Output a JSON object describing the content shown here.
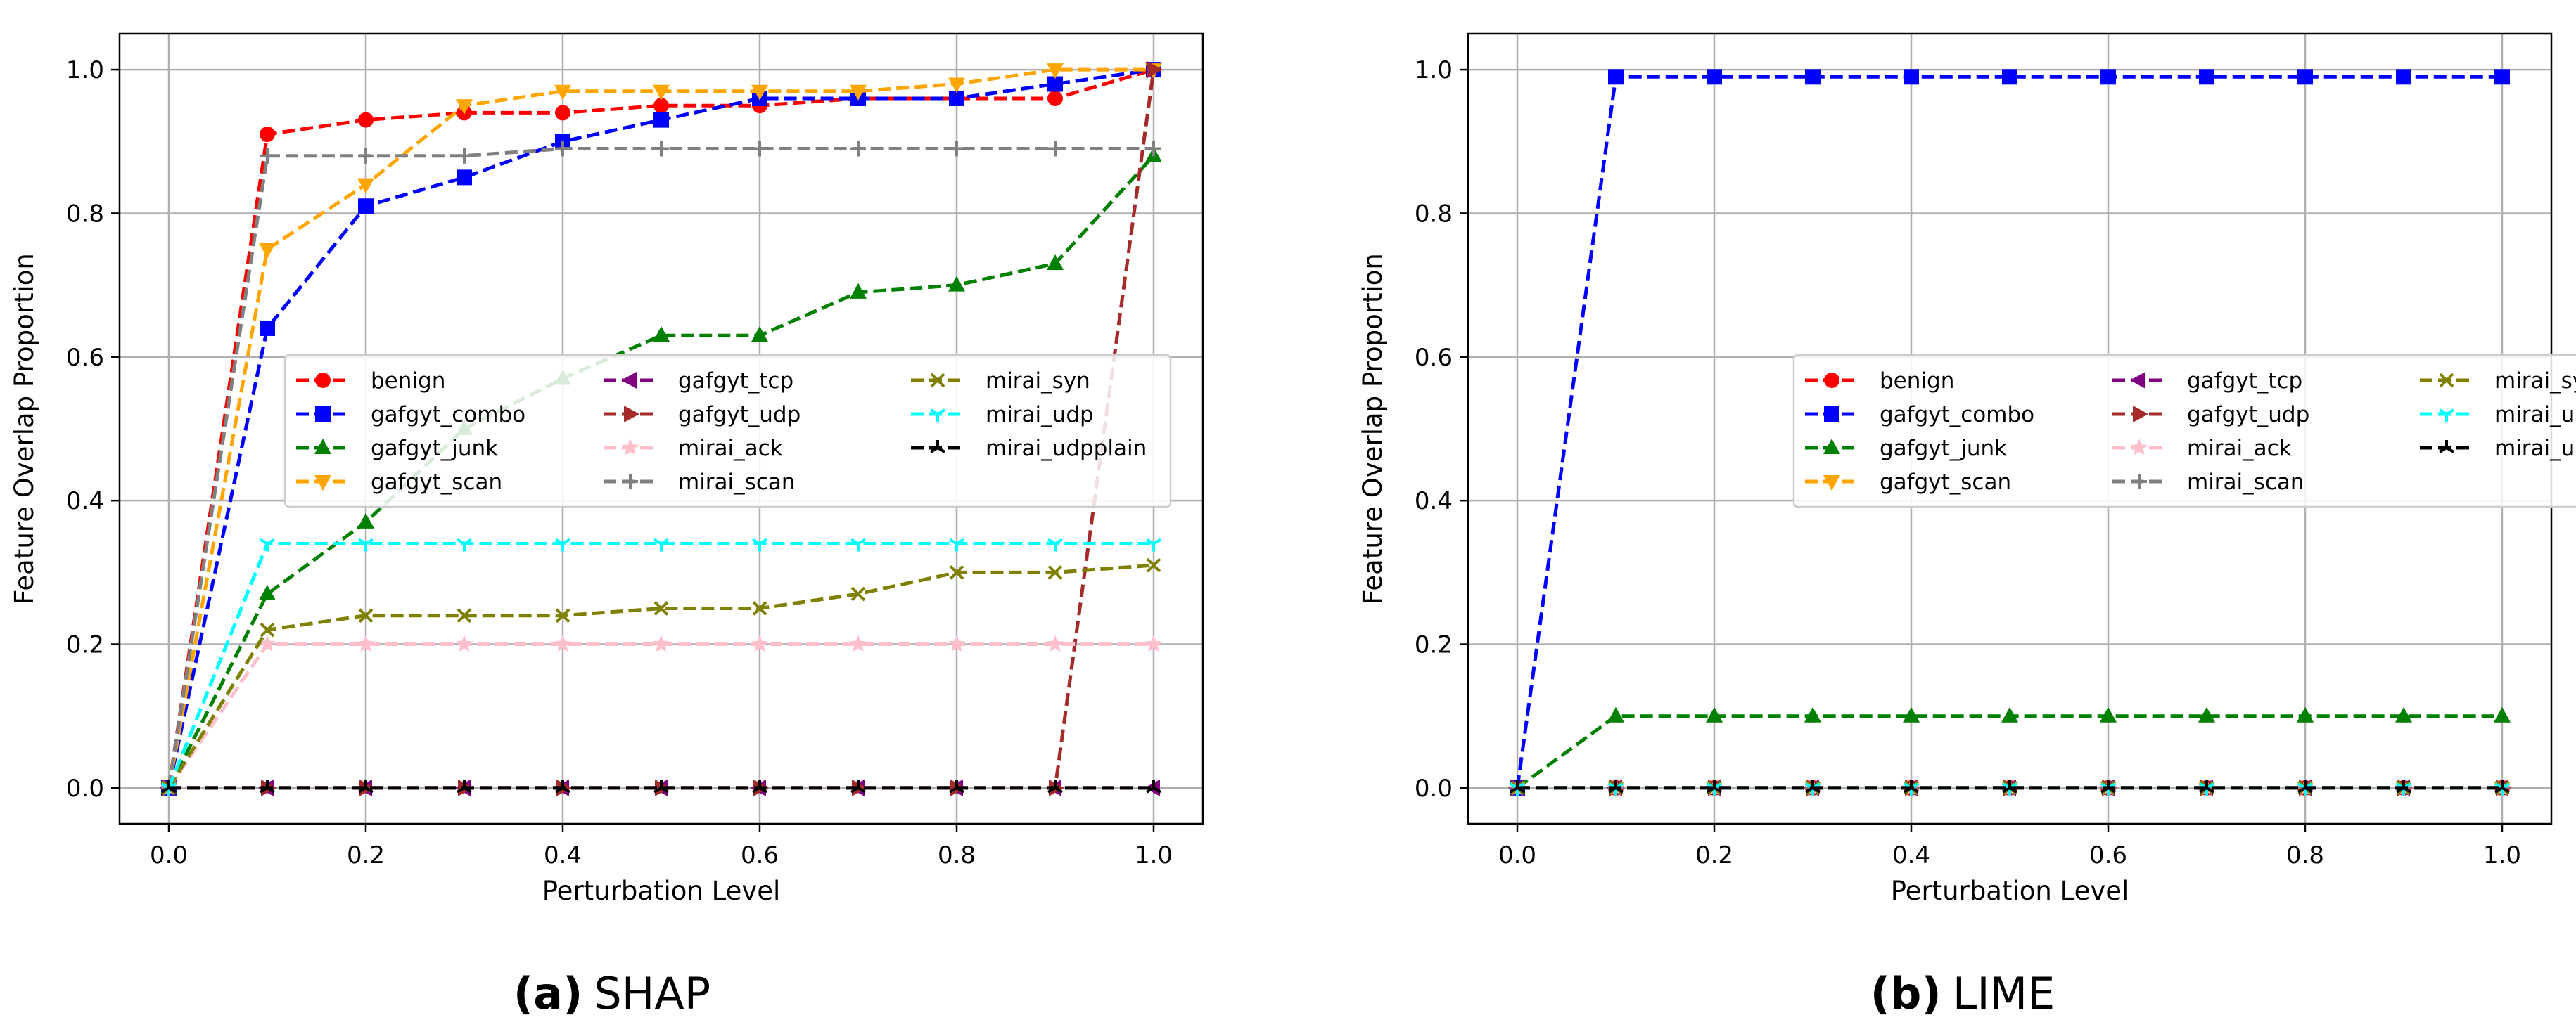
{
  "chart_data": [
    {
      "type": "line",
      "xlabel": "Perturbation Level",
      "ylabel": "Feature Overlap Proportion",
      "caption_label": "(a)",
      "caption_text": "SHAP",
      "xlim": [
        -0.05,
        1.05
      ],
      "ylim": [
        -0.05,
        1.05
      ],
      "xticks": [
        "0.0",
        "0.2",
        "0.4",
        "0.6",
        "0.8",
        "1.0"
      ],
      "yticks": [
        "0.0",
        "0.2",
        "0.4",
        "0.6",
        "0.8",
        "1.0"
      ],
      "grid": true,
      "legend_placement": "center",
      "x": [
        0.0,
        0.1,
        0.2,
        0.3,
        0.4,
        0.5,
        0.6,
        0.7,
        0.8,
        0.9,
        1.0
      ],
      "series": [
        {
          "name": "benign",
          "color": "#ff0000",
          "marker": "circle",
          "values": [
            0.0,
            0.91,
            0.93,
            0.94,
            0.94,
            0.95,
            0.95,
            0.96,
            0.96,
            0.96,
            1.0
          ]
        },
        {
          "name": "gafgyt_combo",
          "color": "#0000ff",
          "marker": "square",
          "values": [
            0.0,
            0.64,
            0.81,
            0.85,
            0.9,
            0.93,
            0.96,
            0.96,
            0.96,
            0.98,
            1.0
          ]
        },
        {
          "name": "gafgyt_junk",
          "color": "#008000",
          "marker": "triangle-up",
          "values": [
            0.0,
            0.27,
            0.37,
            0.5,
            0.57,
            0.63,
            0.63,
            0.69,
            0.7,
            0.73,
            0.88
          ]
        },
        {
          "name": "gafgyt_scan",
          "color": "#ffa500",
          "marker": "triangle-down",
          "values": [
            0.0,
            0.75,
            0.84,
            0.95,
            0.97,
            0.97,
            0.97,
            0.97,
            0.98,
            1.0,
            1.0
          ]
        },
        {
          "name": "gafgyt_tcp",
          "color": "#800080",
          "marker": "triangle-left",
          "values": [
            0.0,
            0.0,
            0.0,
            0.0,
            0.0,
            0.0,
            0.0,
            0.0,
            0.0,
            0.0,
            0.0
          ]
        },
        {
          "name": "gafgyt_udp",
          "color": "#a52a2a",
          "marker": "triangle-right",
          "values": [
            0.0,
            0.0,
            0.0,
            0.0,
            0.0,
            0.0,
            0.0,
            0.0,
            0.0,
            0.0,
            1.0
          ]
        },
        {
          "name": "mirai_ack",
          "color": "#ffc0cb",
          "marker": "star",
          "values": [
            0.0,
            0.2,
            0.2,
            0.2,
            0.2,
            0.2,
            0.2,
            0.2,
            0.2,
            0.2,
            0.2
          ]
        },
        {
          "name": "mirai_scan",
          "color": "#808080",
          "marker": "plus",
          "values": [
            0.0,
            0.88,
            0.88,
            0.88,
            0.89,
            0.89,
            0.89,
            0.89,
            0.89,
            0.89,
            0.89
          ]
        },
        {
          "name": "mirai_syn",
          "color": "#808000",
          "marker": "x",
          "values": [
            0.0,
            0.22,
            0.24,
            0.24,
            0.24,
            0.25,
            0.25,
            0.27,
            0.3,
            0.3,
            0.31
          ]
        },
        {
          "name": "mirai_udp",
          "color": "#00ffff",
          "marker": "tri-down",
          "values": [
            0.0,
            0.34,
            0.34,
            0.34,
            0.34,
            0.34,
            0.34,
            0.34,
            0.34,
            0.34,
            0.34
          ]
        },
        {
          "name": "mirai_udpplain",
          "color": "#000000",
          "marker": "tri-up",
          "values": [
            0.0,
            0.0,
            0.0,
            0.0,
            0.0,
            0.0,
            0.0,
            0.0,
            0.0,
            0.0,
            0.0
          ]
        }
      ]
    },
    {
      "type": "line",
      "xlabel": "Perturbation Level",
      "ylabel": "Feature Overlap Proportion",
      "caption_label": "(b)",
      "caption_text": "LIME",
      "xlim": [
        -0.05,
        1.05
      ],
      "ylim": [
        -0.05,
        1.05
      ],
      "xticks": [
        "0.0",
        "0.2",
        "0.4",
        "0.6",
        "0.8",
        "1.0"
      ],
      "yticks": [
        "0.0",
        "0.2",
        "0.4",
        "0.6",
        "0.8",
        "1.0"
      ],
      "grid": true,
      "legend_placement": "center-right",
      "x": [
        0.0,
        0.1,
        0.2,
        0.3,
        0.4,
        0.5,
        0.6,
        0.7,
        0.8,
        0.9,
        1.0
      ],
      "series": [
        {
          "name": "benign",
          "color": "#ff0000",
          "marker": "circle",
          "values": [
            0,
            0,
            0,
            0,
            0,
            0,
            0,
            0,
            0,
            0,
            0
          ]
        },
        {
          "name": "gafgyt_combo",
          "color": "#0000ff",
          "marker": "square",
          "values": [
            0.0,
            0.99,
            0.99,
            0.99,
            0.99,
            0.99,
            0.99,
            0.99,
            0.99,
            0.99,
            0.99
          ]
        },
        {
          "name": "gafgyt_junk",
          "color": "#008000",
          "marker": "triangle-up",
          "values": [
            0.0,
            0.1,
            0.1,
            0.1,
            0.1,
            0.1,
            0.1,
            0.1,
            0.1,
            0.1,
            0.1
          ]
        },
        {
          "name": "gafgyt_scan",
          "color": "#ffa500",
          "marker": "triangle-down",
          "values": [
            0,
            0,
            0,
            0,
            0,
            0,
            0,
            0,
            0,
            0,
            0
          ]
        },
        {
          "name": "gafgyt_tcp",
          "color": "#800080",
          "marker": "triangle-left",
          "values": [
            0,
            0,
            0,
            0,
            0,
            0,
            0,
            0,
            0,
            0,
            0
          ]
        },
        {
          "name": "gafgyt_udp",
          "color": "#a52a2a",
          "marker": "triangle-right",
          "values": [
            0,
            0,
            0,
            0,
            0,
            0,
            0,
            0,
            0,
            0,
            0
          ]
        },
        {
          "name": "mirai_ack",
          "color": "#ffc0cb",
          "marker": "star",
          "values": [
            0,
            0,
            0,
            0,
            0,
            0,
            0,
            0,
            0,
            0,
            0
          ]
        },
        {
          "name": "mirai_scan",
          "color": "#808080",
          "marker": "plus",
          "values": [
            0,
            0,
            0,
            0,
            0,
            0,
            0,
            0,
            0,
            0,
            0
          ]
        },
        {
          "name": "mirai_syn",
          "color": "#808000",
          "marker": "x",
          "values": [
            0,
            0,
            0,
            0,
            0,
            0,
            0,
            0,
            0,
            0,
            0
          ]
        },
        {
          "name": "mirai_udp",
          "color": "#00ffff",
          "marker": "tri-down",
          "values": [
            0,
            0,
            0,
            0,
            0,
            0,
            0,
            0,
            0,
            0,
            0
          ]
        },
        {
          "name": "mirai_udpplain",
          "color": "#000000",
          "marker": "tri-up",
          "values": [
            0,
            0,
            0,
            0,
            0,
            0,
            0,
            0,
            0,
            0,
            0
          ]
        }
      ]
    }
  ]
}
